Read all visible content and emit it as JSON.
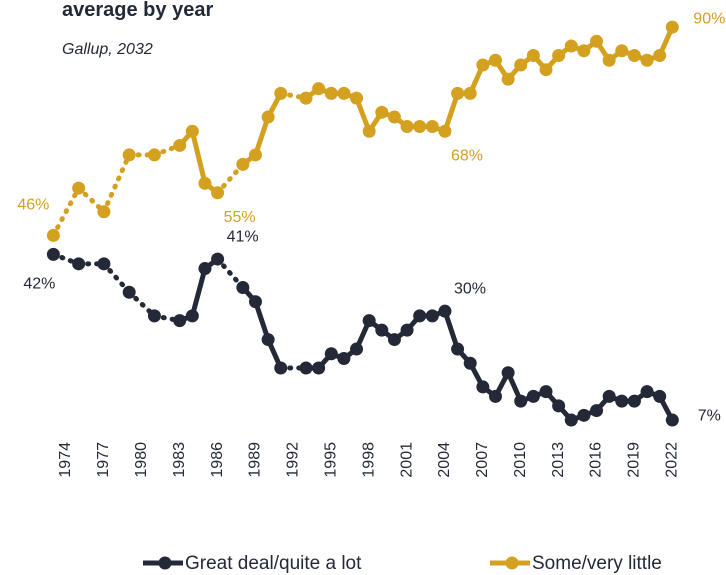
{
  "chart_data": {
    "type": "line",
    "title": "average by year",
    "subtitle": "Gallup, 2032",
    "x": [
      1973,
      1975,
      1977,
      1979,
      1981,
      1983,
      1984,
      1985,
      1986,
      1988,
      1989,
      1990,
      1991,
      1993,
      1994,
      1995,
      1996,
      1997,
      1998,
      1999,
      2000,
      2001,
      2002,
      2003,
      2004,
      2005,
      2006,
      2007,
      2008,
      2009,
      2010,
      2011,
      2012,
      2013,
      2014,
      2015,
      2016,
      2017,
      2018,
      2019,
      2020,
      2021,
      2022
    ],
    "xlim": [
      1971.94,
      2023.4
    ],
    "xticks": [
      1974,
      1977,
      1980,
      1983,
      1986,
      1989,
      1992,
      1995,
      1998,
      2001,
      2004,
      2007,
      2010,
      2013,
      2016,
      2019,
      2022
    ],
    "ylim": [
      4.9,
      91.5
    ],
    "series": [
      {
        "name": "Great deal/quite a lot",
        "color": "#232937",
        "values": [
          42,
          40,
          40,
          34,
          29,
          28,
          29,
          39,
          41,
          35,
          32,
          24,
          18,
          18,
          18,
          21,
          20,
          22,
          28,
          26,
          24,
          26,
          29,
          29,
          30,
          22,
          19,
          14,
          12,
          17,
          11,
          12,
          13,
          10,
          7,
          8,
          9,
          12,
          11,
          11,
          13,
          12,
          7
        ],
        "value_labels": [
          "42%",
          null,
          null,
          null,
          null,
          null,
          null,
          null,
          "41%",
          null,
          null,
          null,
          null,
          null,
          null,
          null,
          null,
          null,
          null,
          null,
          null,
          null,
          null,
          null,
          "30%",
          null,
          null,
          null,
          null,
          null,
          null,
          null,
          null,
          null,
          null,
          null,
          null,
          null,
          null,
          null,
          null,
          null,
          "7%"
        ]
      },
      {
        "name": "Some/very little",
        "color": "#d4a020",
        "values": [
          46,
          56,
          51,
          63,
          63,
          65,
          68,
          57,
          55,
          61,
          63,
          71,
          76,
          75,
          77,
          76,
          76,
          75,
          68,
          72,
          71,
          69,
          69,
          69,
          68,
          76,
          76,
          82,
          83,
          79,
          82,
          84,
          81,
          84,
          86,
          85,
          87,
          83,
          85,
          84,
          83,
          84,
          90
        ],
        "value_labels": [
          "46%",
          null,
          null,
          null,
          null,
          null,
          null,
          null,
          "55%",
          null,
          null,
          null,
          null,
          null,
          null,
          null,
          null,
          null,
          null,
          null,
          null,
          null,
          null,
          null,
          "68%",
          null,
          null,
          null,
          null,
          null,
          null,
          null,
          null,
          null,
          null,
          null,
          null,
          null,
          null,
          null,
          null,
          null,
          "90%"
        ]
      }
    ],
    "legend": "bottom"
  }
}
